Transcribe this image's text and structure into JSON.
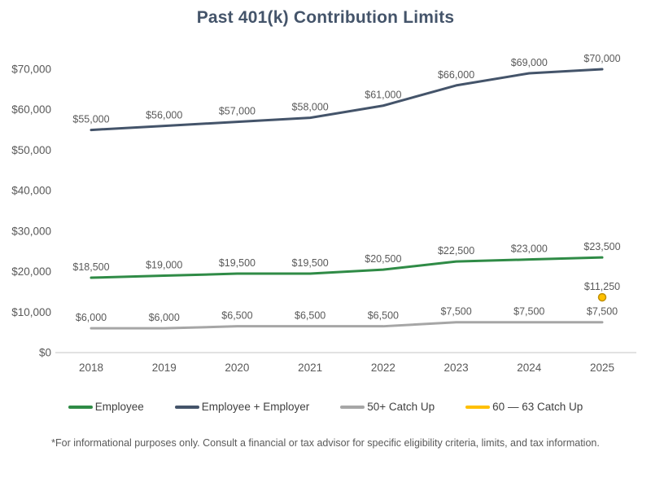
{
  "title": "Past 401(k) Contribution Limits",
  "footnote": "*For informational purposes only. Consult a financial or tax advisor for specific eligibility criteria, limits, and tax information.",
  "colors": {
    "title": "#44546A",
    "axis_line": "#D9D9D9",
    "tick_label": "#595959",
    "data_label": "#595959",
    "legend_text": "#404040"
  },
  "chart_data": {
    "type": "line",
    "title": "Past 401(k) Contribution Limits",
    "categories": [
      "2018",
      "2019",
      "2020",
      "2021",
      "2022",
      "2023",
      "2024",
      "2025"
    ],
    "series": [
      {
        "name": "Employee",
        "style": "line",
        "color": "#2F8B46",
        "values": [
          18500,
          19000,
          19500,
          19500,
          20500,
          22500,
          23000,
          23500
        ]
      },
      {
        "name": "Employee + Employer",
        "style": "line",
        "color": "#44546A",
        "values": [
          55000,
          56000,
          57000,
          58000,
          61000,
          66000,
          69000,
          70000
        ]
      },
      {
        "name": "50+ Catch Up",
        "style": "line",
        "color": "#A6A6A6",
        "values": [
          6000,
          6000,
          6500,
          6500,
          6500,
          7500,
          7500,
          7500
        ]
      },
      {
        "name": "60 — 63 Catch Up",
        "style": "scatter",
        "color": "#FFC000",
        "marker_border": "#BF8F00",
        "values": [
          null,
          null,
          null,
          null,
          null,
          null,
          null,
          11250
        ]
      }
    ],
    "ylim": [
      0,
      70000
    ],
    "y_ticks": [
      0,
      10000,
      20000,
      30000,
      40000,
      50000,
      60000,
      70000
    ],
    "y_tick_labels": [
      "$0",
      "$10,000",
      "$20,000",
      "$30,000",
      "$40,000",
      "$50,000",
      "$60,000",
      "$70,000"
    ],
    "grid": false,
    "legend_position": "bottom",
    "data_labels": true,
    "label_format": "$#,##0"
  }
}
